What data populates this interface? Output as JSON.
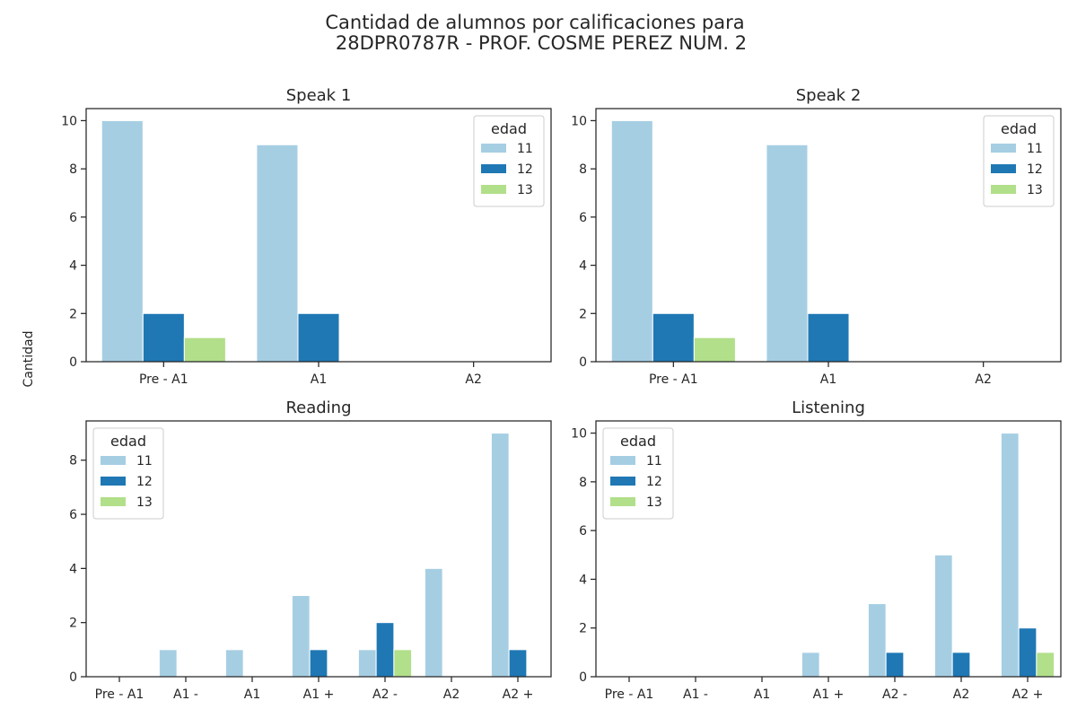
{
  "figure": {
    "title_line1": "Cantidad de alumnos por calificaciones para",
    "title_line2": "28DPR0787R - PROF. COSME PEREZ NUM. 2",
    "ylabel": "Cantidad"
  },
  "legend": {
    "title": "edad",
    "entries": [
      "11",
      "12",
      "13"
    ]
  },
  "colors": {
    "11": "#a6cee3",
    "12": "#1f78b4",
    "13": "#b2df8a"
  },
  "chart_data": [
    {
      "type": "bar",
      "title": "Speak 1",
      "categories": [
        "Pre - A1",
        "A1",
        "A2"
      ],
      "series": [
        {
          "name": "11",
          "values": [
            10,
            9,
            0
          ]
        },
        {
          "name": "12",
          "values": [
            2,
            2,
            0
          ]
        },
        {
          "name": "13",
          "values": [
            1,
            0,
            0
          ]
        }
      ],
      "ylim": [
        0,
        10.5
      ],
      "yticks": [
        0,
        2,
        4,
        6,
        8,
        10
      ],
      "legend_position": "top-right"
    },
    {
      "type": "bar",
      "title": "Speak 2",
      "categories": [
        "Pre - A1",
        "A1",
        "A2"
      ],
      "series": [
        {
          "name": "11",
          "values": [
            10,
            9,
            0
          ]
        },
        {
          "name": "12",
          "values": [
            2,
            2,
            0
          ]
        },
        {
          "name": "13",
          "values": [
            1,
            0,
            0
          ]
        }
      ],
      "ylim": [
        0,
        10.5
      ],
      "yticks": [
        0,
        2,
        4,
        6,
        8,
        10
      ],
      "legend_position": "top-right"
    },
    {
      "type": "bar",
      "title": "Reading",
      "categories": [
        "Pre - A1",
        "A1 -",
        "A1",
        "A1 +",
        "A2 -",
        "A2",
        "A2 +"
      ],
      "series": [
        {
          "name": "11",
          "values": [
            0,
            1,
            1,
            3,
            1,
            4,
            9
          ]
        },
        {
          "name": "12",
          "values": [
            0,
            0,
            0,
            1,
            2,
            0,
            1
          ]
        },
        {
          "name": "13",
          "values": [
            0,
            0,
            0,
            0,
            1,
            0,
            0
          ]
        }
      ],
      "ylim": [
        0,
        9.45
      ],
      "yticks": [
        0,
        2,
        4,
        6,
        8
      ],
      "legend_position": "top-left"
    },
    {
      "type": "bar",
      "title": "Listening",
      "categories": [
        "Pre - A1",
        "A1 -",
        "A1",
        "A1 +",
        "A2 -",
        "A2",
        "A2 +"
      ],
      "series": [
        {
          "name": "11",
          "values": [
            0,
            0,
            0,
            1,
            3,
            5,
            10
          ]
        },
        {
          "name": "12",
          "values": [
            0,
            0,
            0,
            0,
            1,
            1,
            2
          ]
        },
        {
          "name": "13",
          "values": [
            0,
            0,
            0,
            0,
            0,
            0,
            1
          ]
        }
      ],
      "ylim": [
        0,
        10.5
      ],
      "yticks": [
        0,
        2,
        4,
        6,
        8,
        10
      ],
      "legend_position": "top-left"
    }
  ]
}
